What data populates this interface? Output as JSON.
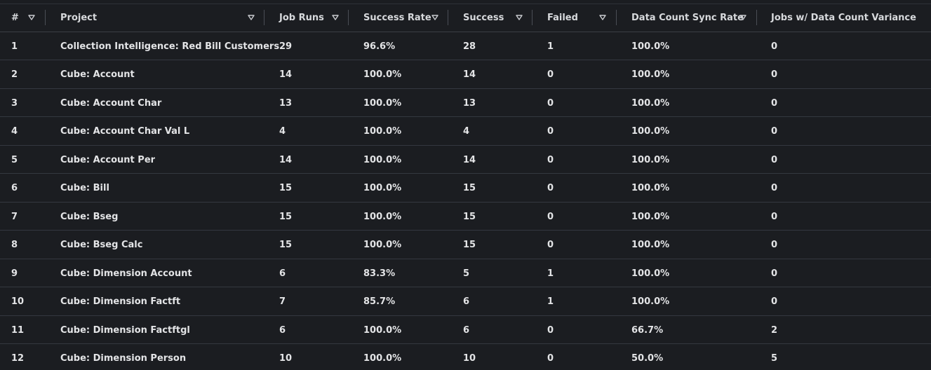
{
  "table": {
    "columns": [
      {
        "key": "num",
        "label": "#",
        "sortable": true
      },
      {
        "key": "project",
        "label": "Project",
        "sortable": true
      },
      {
        "key": "job_runs",
        "label": "Job Runs",
        "sortable": true
      },
      {
        "key": "success_rate",
        "label": "Success Rate",
        "sortable": true
      },
      {
        "key": "success",
        "label": "Success",
        "sortable": true
      },
      {
        "key": "failed",
        "label": "Failed",
        "sortable": true
      },
      {
        "key": "sync_rate",
        "label": "Data Count Sync Rate",
        "sortable": true
      },
      {
        "key": "variance",
        "label": "Jobs w/ Data Count Variance",
        "sortable": false
      }
    ],
    "rows": [
      {
        "num": "1",
        "project": "Collection Intelligence: Red Bill Customers",
        "job_runs": "29",
        "success_rate": "96.6%",
        "success": "28",
        "failed": "1",
        "sync_rate": "100.0%",
        "variance": "0"
      },
      {
        "num": "2",
        "project": "Cube: Account",
        "job_runs": "14",
        "success_rate": "100.0%",
        "success": "14",
        "failed": "0",
        "sync_rate": "100.0%",
        "variance": "0"
      },
      {
        "num": "3",
        "project": "Cube: Account Char",
        "job_runs": "13",
        "success_rate": "100.0%",
        "success": "13",
        "failed": "0",
        "sync_rate": "100.0%",
        "variance": "0"
      },
      {
        "num": "4",
        "project": "Cube: Account Char Val L",
        "job_runs": "4",
        "success_rate": "100.0%",
        "success": "4",
        "failed": "0",
        "sync_rate": "100.0%",
        "variance": "0"
      },
      {
        "num": "5",
        "project": "Cube: Account Per",
        "job_runs": "14",
        "success_rate": "100.0%",
        "success": "14",
        "failed": "0",
        "sync_rate": "100.0%",
        "variance": "0"
      },
      {
        "num": "6",
        "project": "Cube: Bill",
        "job_runs": "15",
        "success_rate": "100.0%",
        "success": "15",
        "failed": "0",
        "sync_rate": "100.0%",
        "variance": "0"
      },
      {
        "num": "7",
        "project": "Cube: Bseg",
        "job_runs": "15",
        "success_rate": "100.0%",
        "success": "15",
        "failed": "0",
        "sync_rate": "100.0%",
        "variance": "0"
      },
      {
        "num": "8",
        "project": "Cube: Bseg Calc",
        "job_runs": "15",
        "success_rate": "100.0%",
        "success": "15",
        "failed": "0",
        "sync_rate": "100.0%",
        "variance": "0"
      },
      {
        "num": "9",
        "project": "Cube: Dimension Account",
        "job_runs": "6",
        "success_rate": "83.3%",
        "success": "5",
        "failed": "1",
        "sync_rate": "100.0%",
        "variance": "0"
      },
      {
        "num": "10",
        "project": "Cube: Dimension Factft",
        "job_runs": "7",
        "success_rate": "85.7%",
        "success": "6",
        "failed": "1",
        "sync_rate": "100.0%",
        "variance": "0"
      },
      {
        "num": "11",
        "project": "Cube: Dimension Factftgl",
        "job_runs": "6",
        "success_rate": "100.0%",
        "success": "6",
        "failed": "0",
        "sync_rate": "66.7%",
        "variance": "2"
      },
      {
        "num": "12",
        "project": "Cube: Dimension Person",
        "job_runs": "10",
        "success_rate": "100.0%",
        "success": "10",
        "failed": "0",
        "sync_rate": "50.0%",
        "variance": "5"
      }
    ]
  },
  "icons": {
    "sort": "filter-triangle-icon"
  },
  "colors": {
    "background": "#1b1d21",
    "text": "#e3e4e6",
    "row_border": "#343840",
    "header_separator": "#4a4e55"
  }
}
